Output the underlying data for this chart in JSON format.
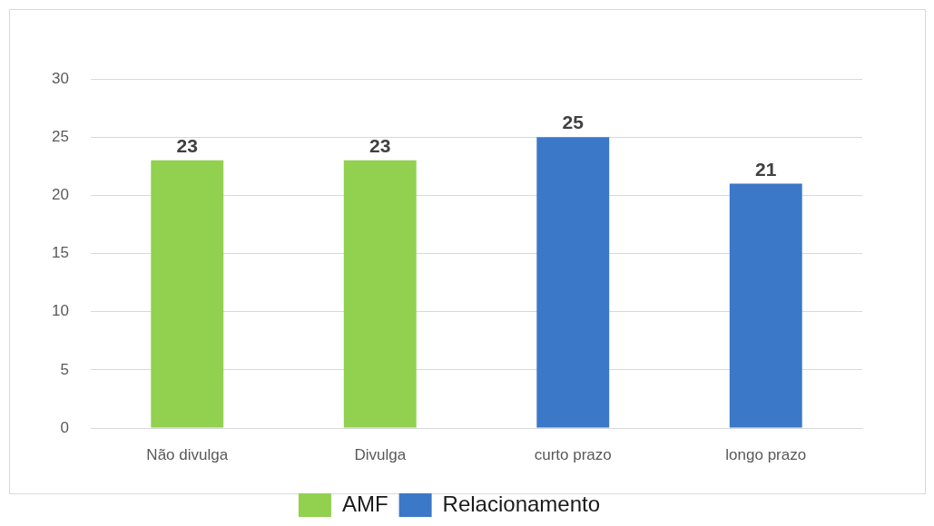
{
  "chart_data": {
    "type": "bar",
    "categories": [
      "Não divulga",
      "Divulga",
      "curto prazo",
      "longo prazo"
    ],
    "series": [
      {
        "name": "AMF",
        "color": "#92d050",
        "values": [
          23,
          23,
          null,
          null
        ]
      },
      {
        "name": "Relacionamento",
        "color": "#3b78c8",
        "values": [
          null,
          null,
          25,
          21
        ]
      }
    ],
    "ylim": [
      0,
      30
    ],
    "yticks": [
      0,
      5,
      10,
      15,
      20,
      25,
      30
    ],
    "grid": "y",
    "legend": "bottom",
    "data_labels": true
  }
}
